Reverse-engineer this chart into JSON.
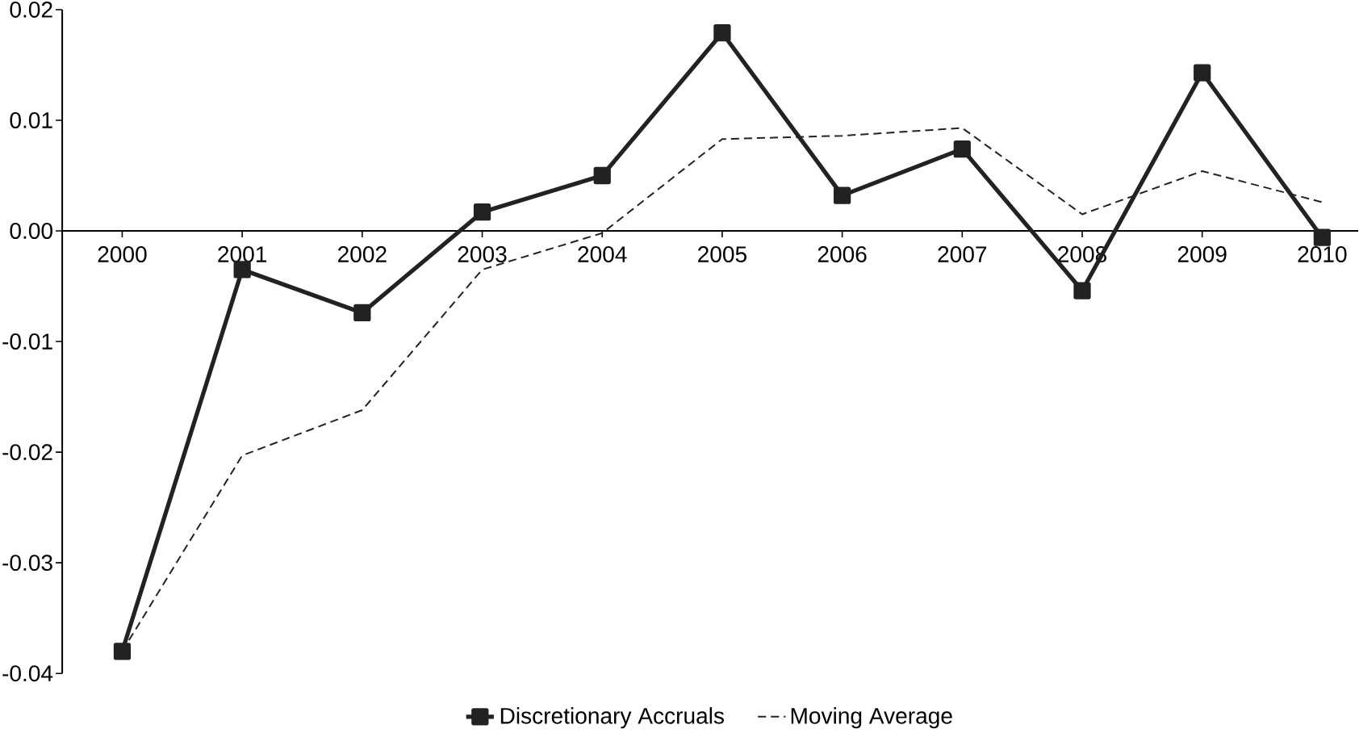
{
  "chart_data": {
    "type": "line",
    "categories": [
      "2000",
      "2001",
      "2002",
      "2003",
      "2004",
      "2005",
      "2006",
      "2007",
      "2008",
      "2009",
      "2010"
    ],
    "series": [
      {
        "name": "Discretionary Accruals",
        "color": "#222222",
        "marker": "square",
        "line_style": "solid",
        "values": [
          -0.038,
          -0.0035,
          -0.0074,
          0.0017,
          0.005,
          0.0179,
          0.0032,
          0.0074,
          -0.0054,
          0.0143,
          -0.0006
        ]
      },
      {
        "name": "Moving Average",
        "color": "#222222",
        "marker": "none",
        "line_style": "dashed",
        "values": [
          -0.038,
          -0.0203,
          -0.0162,
          -0.0035,
          -0.0002,
          0.0083,
          0.0086,
          0.0093,
          0.0015,
          0.0054,
          0.0026
        ]
      }
    ],
    "ylim": [
      -0.04,
      0.02
    ],
    "yticks": [
      {
        "value": -0.04,
        "label": "-0.04"
      },
      {
        "value": -0.03,
        "label": "-0.03"
      },
      {
        "value": -0.02,
        "label": "-0.02"
      },
      {
        "value": -0.01,
        "label": "-0.01"
      },
      {
        "value": 0,
        "label": "0.00"
      },
      {
        "value": 0.01,
        "label": "0.01"
      },
      {
        "value": 0.02,
        "label": "0.02"
      }
    ],
    "grid": false,
    "legend": "bottom"
  }
}
